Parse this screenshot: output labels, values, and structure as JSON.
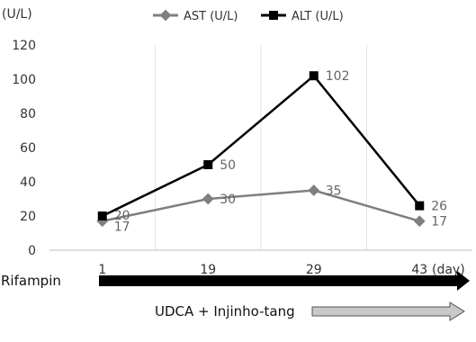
{
  "chart_data": {
    "type": "line",
    "ylabel": "(U/L)",
    "xlabel": "(day)",
    "categories": [
      "1",
      "19",
      "29",
      "43"
    ],
    "ylim": [
      0,
      120
    ],
    "yticks": [
      "0",
      "20",
      "40",
      "60",
      "80",
      "100",
      "120"
    ],
    "grid": "vertical",
    "legend_position": "top",
    "series": [
      {
        "name": "AST (U/L)",
        "values": [
          17,
          30,
          35,
          17
        ],
        "labels": [
          "17",
          "30",
          "35",
          "17"
        ],
        "color": "#7f7f7f",
        "marker": "diamond"
      },
      {
        "name": "ALT (U/L)",
        "values": [
          20,
          50,
          102,
          26
        ],
        "labels": [
          "20",
          "50",
          "102",
          "26"
        ],
        "color": "#000000",
        "marker": "square"
      }
    ]
  },
  "treatments": [
    {
      "label": "Rifampin",
      "color": "#000000"
    },
    {
      "label": "UDCA + Injinho-tang",
      "color": "#c8c8c8"
    }
  ]
}
